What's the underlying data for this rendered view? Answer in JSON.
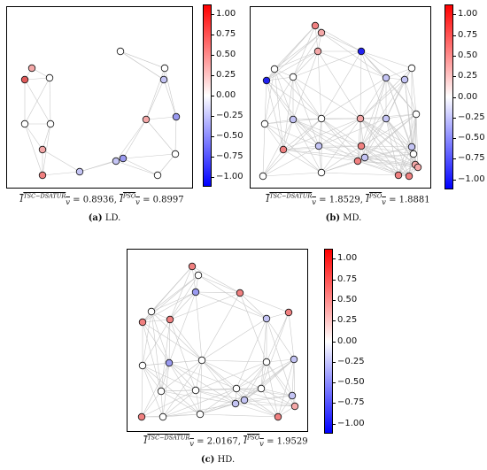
{
  "colorbar": {
    "ticks": [
      "1.00",
      "0.75",
      "0.50",
      "0.25",
      "0.00",
      "−0.25",
      "−0.50",
      "−0.75",
      "−1.00"
    ],
    "max_color": "#ff0000",
    "mid_color": "#ffffff",
    "min_color": "#0000ff"
  },
  "panels": {
    "ld": {
      "metric_a_value": "0.8936",
      "metric_b_value": "0.8997",
      "caption_letter": "(a)",
      "caption_text": " LD."
    },
    "md": {
      "metric_a_value": "1.8529",
      "metric_b_value": "1.8881",
      "caption_letter": "(b)",
      "caption_text": " MD."
    },
    "hd": {
      "metric_a_value": "2.0167",
      "metric_b_value": "1.9529",
      "caption_letter": "(c)",
      "caption_text": " HD."
    }
  },
  "metric_labels": {
    "symbol": "I",
    "sub": "v",
    "sup_a": "TSC−DSATUR",
    "sup_b": "PSO",
    "eq": " = ",
    "sep": ", "
  }
}
